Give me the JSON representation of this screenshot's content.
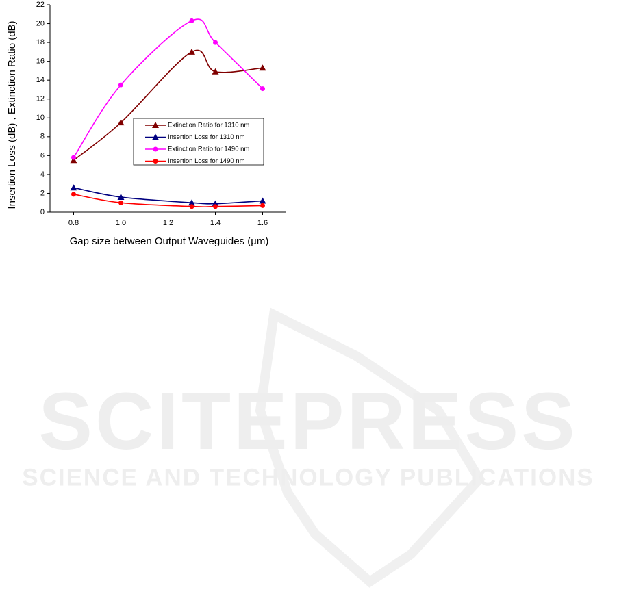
{
  "watermark": {
    "title": "SCITEPRESS",
    "subtitle": "SCIENCE AND TECHNOLOGY PUBLICATIONS"
  },
  "chart_data": {
    "type": "line",
    "x_label": "Gap size between Output Waveguides (µm)",
    "y_label": "Insertion Loss (dB) , Extinction Ratio (dB)",
    "x": [
      0.8,
      1.0,
      1.3,
      1.4,
      1.6
    ],
    "series": [
      {
        "name": "Extinction Ratio for 1310 nm",
        "color": "#800000",
        "marker": "triangle",
        "values": [
          5.5,
          9.5,
          17.0,
          14.9,
          15.3
        ]
      },
      {
        "name": "Insertion Loss for 1310 nm",
        "color": "#000080",
        "marker": "triangle",
        "values": [
          2.6,
          1.6,
          1.0,
          0.9,
          1.2
        ]
      },
      {
        "name": "Extinction Ratio for 1490 nm",
        "color": "#ff00ff",
        "marker": "circle",
        "values": [
          5.8,
          13.5,
          20.3,
          18.0,
          13.1
        ]
      },
      {
        "name": "Insertion Loss for 1490 nm",
        "color": "#ff0000",
        "marker": "circle",
        "values": [
          1.9,
          1.0,
          0.6,
          0.6,
          0.7
        ]
      }
    ],
    "xlim": [
      0.7,
      1.7
    ],
    "xticks": [
      {
        "value": 0.8,
        "label": "0.8"
      },
      {
        "value": 1.0,
        "label": "1.0"
      },
      {
        "value": 1.2,
        "label": "1.2"
      },
      {
        "value": 1.4,
        "label": "1.4"
      },
      {
        "value": 1.6,
        "label": "1.6"
      }
    ],
    "ylim": [
      0,
      22
    ],
    "yticks": [
      0,
      2,
      4,
      6,
      8,
      10,
      12,
      14,
      16,
      18,
      20,
      22
    ]
  }
}
